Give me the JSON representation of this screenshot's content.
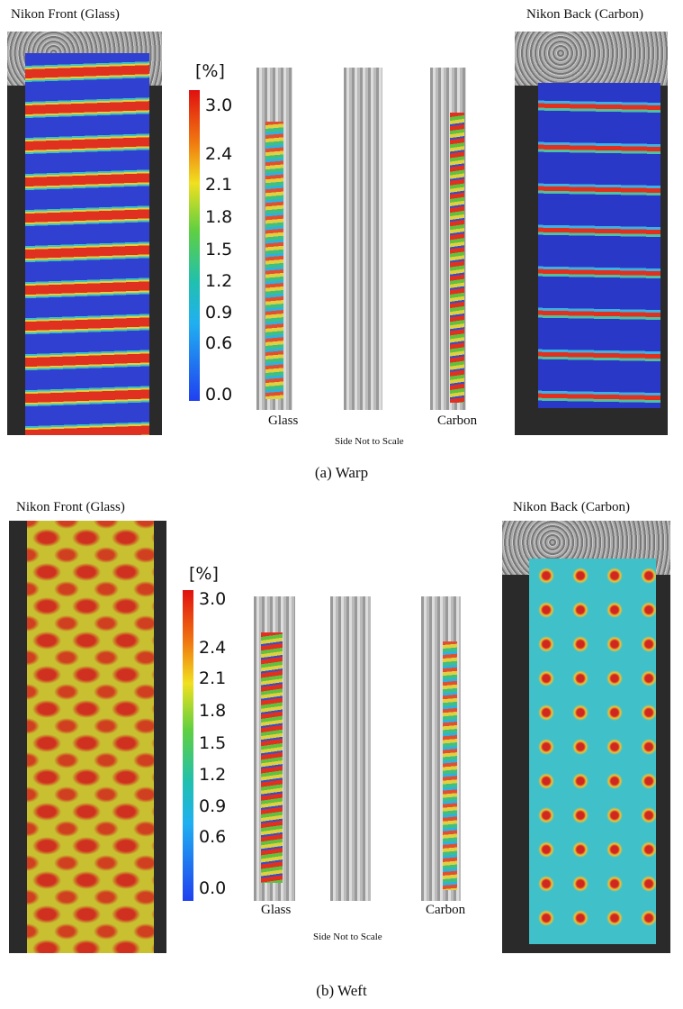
{
  "panels": [
    {
      "front_label": "Nikon Front (Glass)",
      "back_label": "Nikon Back (Carbon)",
      "scale_title": "[%]",
      "scale_labels": [
        "3.0",
        "2.4",
        "2.1",
        "1.8",
        "1.5",
        "1.2",
        "0.9",
        "0.6",
        "0.0"
      ],
      "side_left": "Glass",
      "side_right": "Carbon",
      "side_note": "Side Not to Scale",
      "caption": "(a) Warp"
    },
    {
      "front_label": "Nikon Front (Glass)",
      "back_label": "Nikon Back (Carbon)",
      "scale_title": "[%]",
      "scale_labels": [
        "3.0",
        "2.4",
        "2.1",
        "1.8",
        "1.5",
        "1.2",
        "0.9",
        "0.6",
        "0.0"
      ],
      "side_left": "Glass",
      "side_right": "Carbon",
      "side_note": "Side Not to Scale",
      "caption": "(b) Weft"
    }
  ]
}
